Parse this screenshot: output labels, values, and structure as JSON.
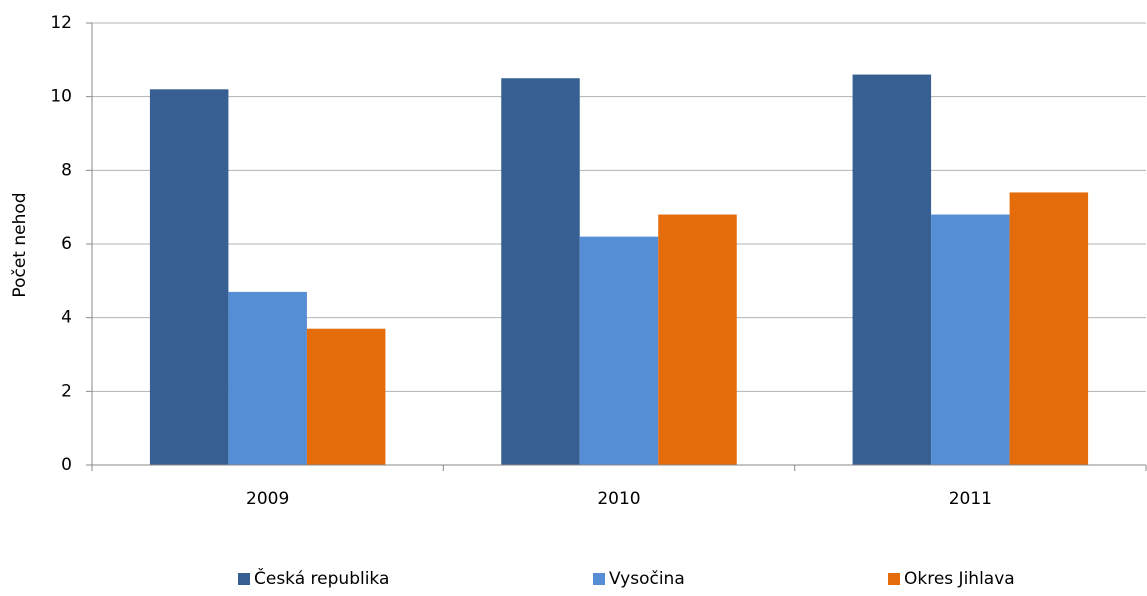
{
  "chart_data": {
    "type": "bar",
    "y_label": "Počet nehod",
    "categories": [
      "2009",
      "2010",
      "2011"
    ],
    "series": [
      {
        "name": "Česká republika",
        "color": "#375f92",
        "values": [
          10.2,
          10.5,
          10.6
        ]
      },
      {
        "name": "Vysočina",
        "color": "#558ed5",
        "values": [
          4.7,
          6.2,
          6.8
        ]
      },
      {
        "name": "Okres Jihlava",
        "color": "#e46c0a",
        "values": [
          3.7,
          6.8,
          7.4
        ]
      }
    ],
    "ylim": [
      0,
      12
    ],
    "yticks": [
      0,
      2,
      4,
      6,
      8,
      10,
      12
    ],
    "grid": true,
    "legend": "bottom"
  }
}
